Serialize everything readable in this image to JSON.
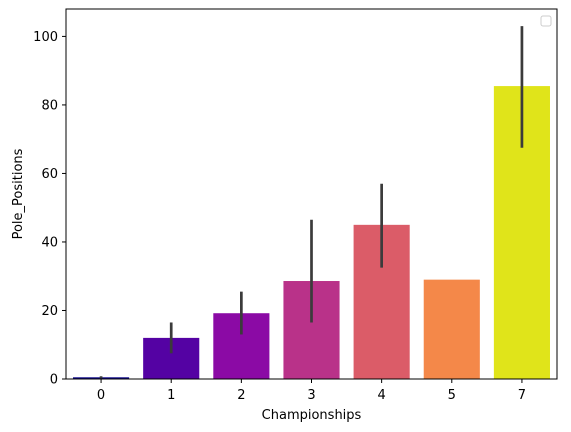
{
  "chart_data": {
    "type": "bar",
    "xlabel": "Championships",
    "ylabel": "Pole_Positions",
    "categories": [
      "0",
      "1",
      "2",
      "3",
      "4",
      "5",
      "7"
    ],
    "values": [
      0.5,
      12,
      19.2,
      28.6,
      45,
      29,
      85.5
    ],
    "error_low": [
      0.2,
      7.5,
      13,
      16.5,
      32.5,
      29,
      67.5
    ],
    "error_high": [
      0.8,
      16.5,
      25.5,
      46.5,
      57,
      29,
      103
    ],
    "colors": [
      "#0d0887",
      "#5402a3",
      "#8b0aa5",
      "#b93289",
      "#db5c68",
      "#f48849",
      "#e0e41a"
    ],
    "yticks": [
      0,
      20,
      40,
      60,
      80,
      100
    ],
    "ylim": [
      0,
      108
    ],
    "grid": false,
    "legend": "top-right, empty",
    "error_bar_color": "#3b3b3b"
  }
}
